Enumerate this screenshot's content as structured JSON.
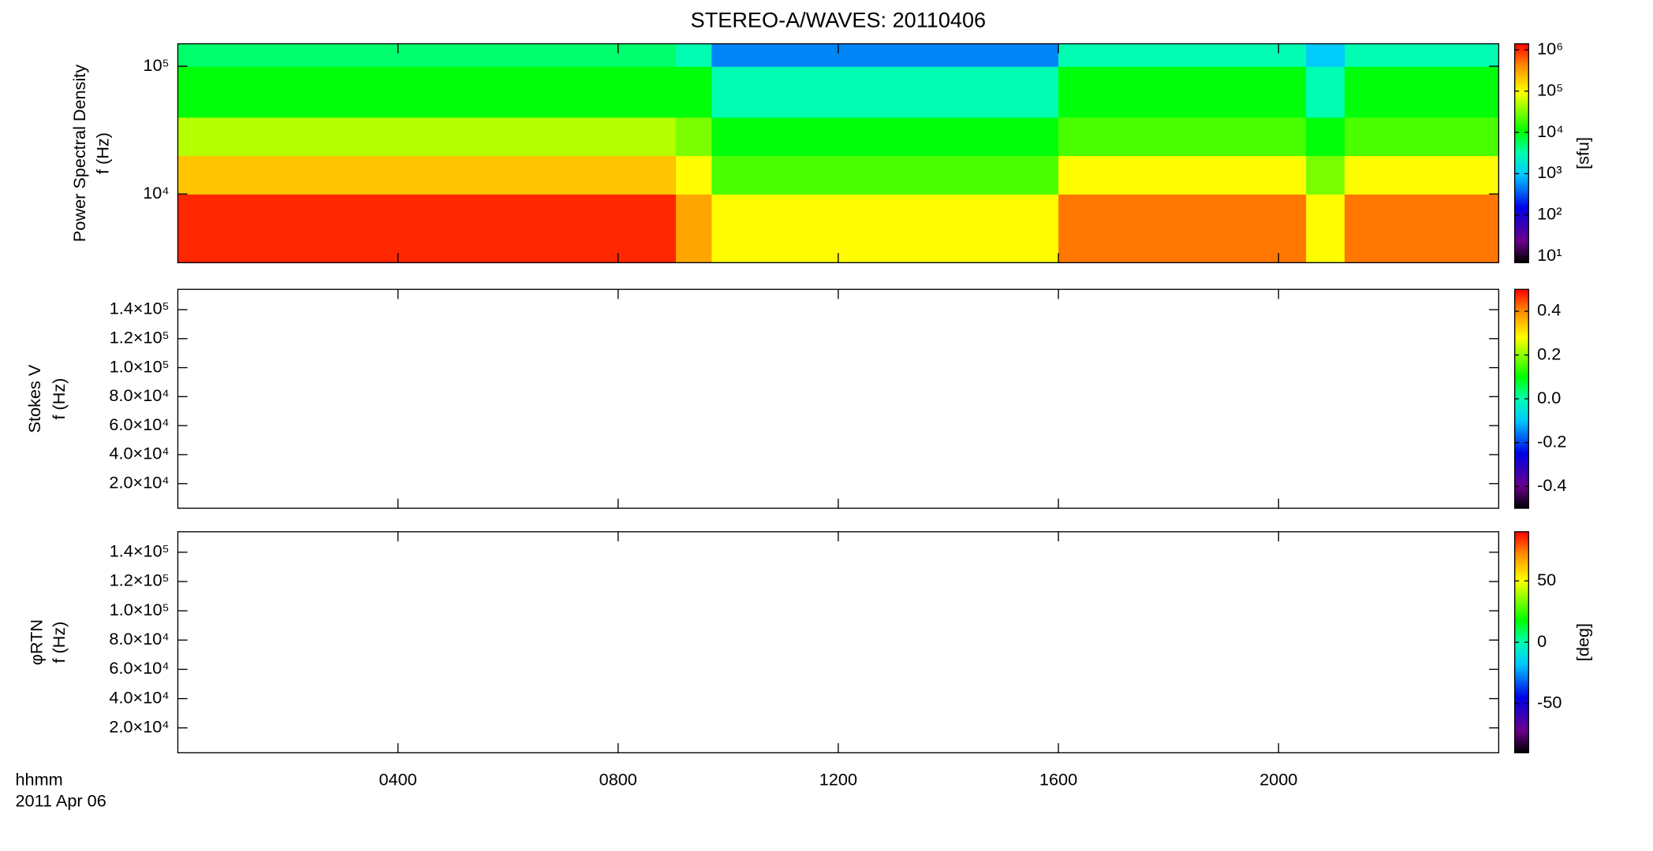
{
  "chart_data": [
    {
      "type": "heatmap",
      "title": "STEREO-A/WAVES: 20110406",
      "ylabel_lines": [
        "Power Spectral Density",
        "f (Hz)"
      ],
      "xlim": [
        0,
        24
      ],
      "xticks": [
        {
          "value": 4,
          "label": "0400"
        },
        {
          "value": 8,
          "label": "0800"
        },
        {
          "value": 12,
          "label": "1200"
        },
        {
          "value": 16,
          "label": "1600"
        },
        {
          "value": 20,
          "label": "2000"
        }
      ],
      "xtick_labels": false,
      "ylog": true,
      "ylim": [
        2900,
        150000
      ],
      "yticks": [
        {
          "value": 10000,
          "label": "10⁴"
        },
        {
          "value": 100000,
          "label": "10⁵"
        }
      ],
      "x_edges": [
        0,
        9.05,
        9.7,
        16,
        20.5,
        21.2,
        24
      ],
      "y_edges": [
        2900,
        10000,
        20000,
        40000,
        100000,
        150000
      ],
      "values": [
        [
          1000000,
          200000,
          50000,
          10000,
          5000
        ],
        [
          300000,
          100000,
          30000,
          10000,
          3000
        ],
        [
          100000,
          20000,
          10000,
          3000,
          500
        ],
        [
          500000,
          100000,
          20000,
          10000,
          3000
        ],
        [
          100000,
          30000,
          10000,
          3000,
          1000
        ],
        [
          500000,
          100000,
          20000,
          10000,
          3000
        ]
      ],
      "colormap": "rainbow",
      "zlog": true,
      "zlim": [
        7,
        1400000
      ],
      "zticks": [
        {
          "value": 10,
          "label": "10¹"
        },
        {
          "value": 100,
          "label": "10²"
        },
        {
          "value": 1000,
          "label": "10³"
        },
        {
          "value": 10000,
          "label": "10⁴"
        },
        {
          "value": 100000,
          "label": "10⁵"
        },
        {
          "value": 1000000,
          "label": "10⁶"
        }
      ],
      "colorbar_label": "[sfu]"
    },
    {
      "type": "heatmap",
      "ylabel_lines": [
        "Stokes V",
        "f (Hz)"
      ],
      "xlim": [
        0,
        24
      ],
      "xticks": [
        {
          "value": 4,
          "label": "0400"
        },
        {
          "value": 8,
          "label": "0800"
        },
        {
          "value": 12,
          "label": "1200"
        },
        {
          "value": 16,
          "label": "1600"
        },
        {
          "value": 20,
          "label": "2000"
        }
      ],
      "xtick_labels": false,
      "ylog": false,
      "ylim": [
        3000,
        154000
      ],
      "yticks": [
        {
          "value": 20000,
          "label": "2.0×10⁴"
        },
        {
          "value": 40000,
          "label": "4.0×10⁴"
        },
        {
          "value": 60000,
          "label": "6.0×10⁴"
        },
        {
          "value": 80000,
          "label": "8.0×10⁴"
        },
        {
          "value": 100000,
          "label": "1.0×10⁵"
        },
        {
          "value": 120000,
          "label": "1.2×10⁵"
        },
        {
          "value": 140000,
          "label": "1.4×10⁵"
        }
      ],
      "colormap": "rainbow",
      "zlog": false,
      "zlim": [
        -0.5,
        0.5
      ],
      "zticks": [
        -0.4,
        -0.2,
        {
          "value": 0,
          "label": "0.0"
        },
        0.2,
        0.4
      ]
    },
    {
      "type": "heatmap",
      "ylabel_lines": [
        "φRTN",
        "f (Hz)"
      ],
      "xlim": [
        0,
        24
      ],
      "xticks": [
        {
          "value": 4,
          "label": "0400"
        },
        {
          "value": 8,
          "label": "0800"
        },
        {
          "value": 12,
          "label": "1200"
        },
        {
          "value": 16,
          "label": "1600"
        },
        {
          "value": 20,
          "label": "2000"
        }
      ],
      "xtick_labels": true,
      "xlabel_lines": [
        "hhmm",
        "2011 Apr 06"
      ],
      "ylog": false,
      "ylim": [
        3000,
        154000
      ],
      "yticks": [
        {
          "value": 20000,
          "label": "2.0×10⁴"
        },
        {
          "value": 40000,
          "label": "4.0×10⁴"
        },
        {
          "value": 60000,
          "label": "6.0×10⁴"
        },
        {
          "value": 80000,
          "label": "8.0×10⁴"
        },
        {
          "value": 100000,
          "label": "1.0×10⁵"
        },
        {
          "value": 120000,
          "label": "1.2×10⁵"
        },
        {
          "value": 140000,
          "label": "1.4×10⁵"
        }
      ],
      "colormap": "rainbow",
      "zlog": false,
      "zlim": [
        -90,
        90
      ],
      "zticks": [
        -50,
        0,
        50
      ],
      "colorbar_label": "[deg]"
    }
  ]
}
